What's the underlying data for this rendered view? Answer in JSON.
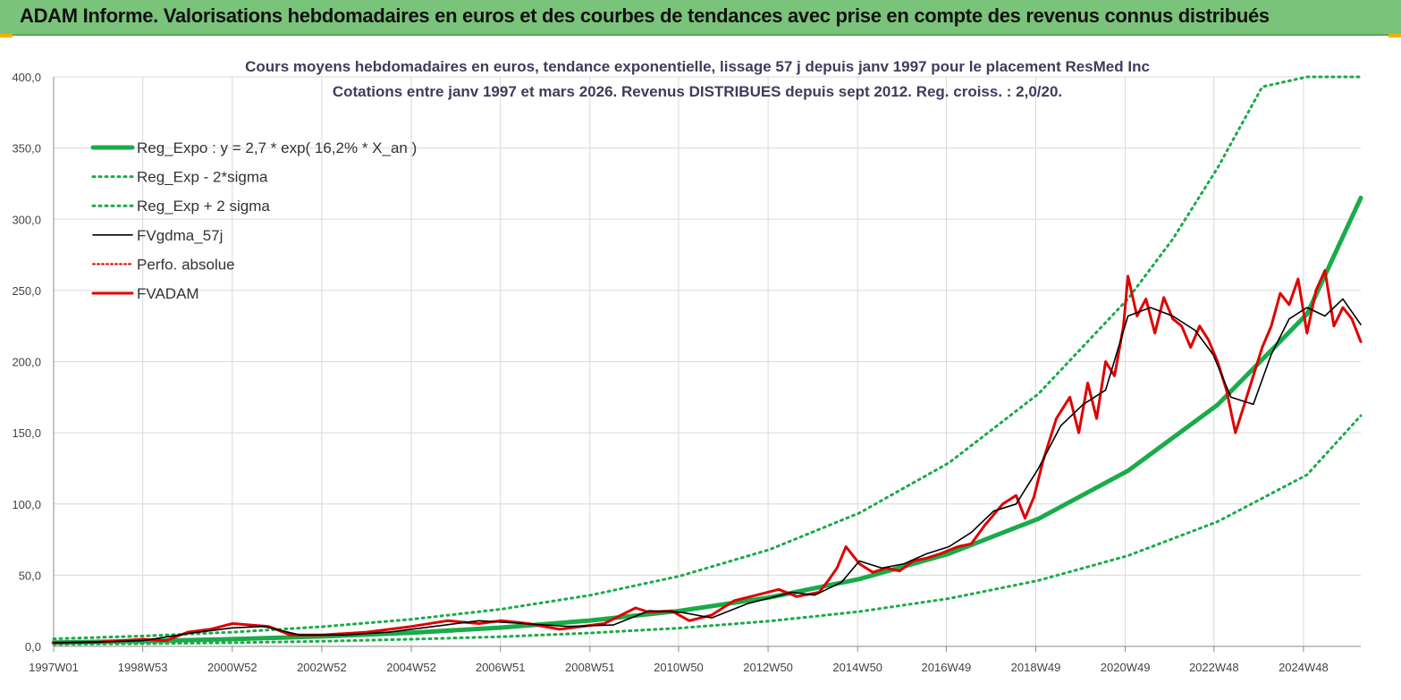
{
  "header": {
    "title": "ADAM Informe. Valorisations hebdomadaires en euros et des courbes de tendances avec prise en compte des revenus connus distribués"
  },
  "colors": {
    "header_bg": "#7ac37a",
    "trend_green": "#1aab4a",
    "fv_black": "#000000",
    "perf_red": "#e00000",
    "grid": "#d9d9d9"
  },
  "chart_data": {
    "type": "line",
    "title": "Cours moyens hebdomadaires en euros, tendance exponentielle, lissage 57 j depuis janv 1997 pour le placement ResMed Inc",
    "subtitle": "Cotations entre janv 1997 et mars 2026. Revenus DISTRIBUES depuis sept 2012. Reg. croiss. : 2,0/20.",
    "xlabel": "",
    "ylabel": "",
    "ylim": [
      0,
      400
    ],
    "x_range_years": [
      1997.0,
      2026.2
    ],
    "yticks": [
      "0,0",
      "50,0",
      "100,0",
      "150,0",
      "200,0",
      "250,0",
      "300,0",
      "350,0",
      "400,0"
    ],
    "ytick_values": [
      0,
      50,
      100,
      150,
      200,
      250,
      300,
      350,
      400
    ],
    "xticks": [
      {
        "label": "1997W01",
        "year": 1997.0
      },
      {
        "label": "1998W53",
        "year": 1998.99
      },
      {
        "label": "2000W52",
        "year": 2000.99
      },
      {
        "label": "2002W52",
        "year": 2002.99
      },
      {
        "label": "2004W52",
        "year": 2004.99
      },
      {
        "label": "2006W51",
        "year": 2006.98
      },
      {
        "label": "2008W51",
        "year": 2008.98
      },
      {
        "label": "2010W50",
        "year": 2010.96
      },
      {
        "label": "2012W50",
        "year": 2012.96
      },
      {
        "label": "2014W50",
        "year": 2014.96
      },
      {
        "label": "2016W49",
        "year": 2016.94
      },
      {
        "label": "2018W49",
        "year": 2018.94
      },
      {
        "label": "2020W49",
        "year": 2020.94
      },
      {
        "label": "2022W48",
        "year": 2022.92
      },
      {
        "label": "2024W48",
        "year": 2024.92
      }
    ],
    "grid": true,
    "legend_position": "top-left",
    "series": [
      {
        "name": "Reg_Expo : y = 2,7 * exp( 16,2% *  X_an )",
        "style": "solid-thick",
        "color": "#1aab4a",
        "x": [
          1997,
          1999,
          2001,
          2003,
          2005,
          2007,
          2009,
          2011,
          2013,
          2015,
          2017,
          2019,
          2021,
          2023,
          2025,
          2026.2
        ],
        "values": [
          2.7,
          3.7,
          5.1,
          7.0,
          9.6,
          13.2,
          18.2,
          25.0,
          34.4,
          47.3,
          65.1,
          89.6,
          123.3,
          169.6,
          233.4,
          315.0
        ]
      },
      {
        "name": "Reg_Exp - 2*sigma",
        "style": "dotted",
        "color": "#1aab4a",
        "x": [
          1997,
          1999,
          2001,
          2003,
          2005,
          2007,
          2009,
          2011,
          2013,
          2015,
          2017,
          2019,
          2021,
          2023,
          2025,
          2026.2
        ],
        "values": [
          1.4,
          1.9,
          2.6,
          3.6,
          5.0,
          6.8,
          9.4,
          12.9,
          17.8,
          24.4,
          33.6,
          46.3,
          63.7,
          87.6,
          120.5,
          162.0
        ]
      },
      {
        "name": "Reg_Exp + 2 sigma",
        "style": "dotted",
        "color": "#1aab4a",
        "x": [
          1997,
          1999,
          2001,
          2003,
          2005,
          2007,
          2009,
          2011,
          2013,
          2015,
          2017,
          2019,
          2021,
          2022,
          2023,
          2024,
          2025,
          2026.2
        ],
        "values": [
          5.3,
          7.3,
          10.0,
          13.8,
          19.0,
          26.1,
          36.0,
          49.5,
          68.1,
          93.7,
          128.9,
          177.4,
          244.1,
          286.0,
          336.0,
          393.0,
          400.0,
          400.0
        ]
      },
      {
        "name": "FVgdma_57j",
        "style": "solid-thin",
        "color": "#000000",
        "x": [
          1997,
          1998,
          1999,
          2000,
          2001,
          2001.7,
          2002.5,
          2003.5,
          2004.5,
          2005.5,
          2006.5,
          2007.5,
          2008.5,
          2009.5,
          2010.3,
          2011.0,
          2011.7,
          2012.5,
          2013.5,
          2014.0,
          2014.6,
          2015.0,
          2015.5,
          2016.0,
          2016.5,
          2017.0,
          2017.5,
          2018.0,
          2018.5,
          2019.0,
          2019.5,
          2020.0,
          2020.5,
          2021.0,
          2021.5,
          2022.0,
          2022.5,
          2022.9,
          2023.3,
          2023.8,
          2024.2,
          2024.6,
          2025.0,
          2025.4,
          2025.8,
          2026.2
        ],
        "values": [
          2.5,
          3.0,
          4.0,
          9.0,
          13.0,
          14.0,
          8.0,
          8.0,
          10.0,
          14.0,
          18.0,
          16.0,
          14.0,
          15.0,
          25.0,
          24.0,
          20.0,
          30.0,
          38.0,
          36.0,
          45.0,
          60.0,
          55.0,
          58.0,
          65.0,
          70.0,
          80.0,
          95.0,
          100.0,
          125.0,
          155.0,
          170.0,
          180.0,
          232.0,
          238.0,
          232.0,
          222.0,
          205.0,
          175.0,
          170.0,
          205.0,
          230.0,
          238.0,
          232.0,
          244.0,
          226.0
        ]
      },
      {
        "name": "Perfo. absolue",
        "style": "dotted-thin",
        "color": "#e00000",
        "x": [],
        "values": []
      },
      {
        "name": "FVADAM",
        "style": "solid-thick",
        "color": "#e00000",
        "x": [
          1997,
          1998,
          1999,
          1999.5,
          2000,
          2000.5,
          2001,
          2001.4,
          2001.8,
          2002.3,
          2003,
          2004,
          2005,
          2005.8,
          2006.5,
          2007,
          2007.6,
          2008.3,
          2008.8,
          2009.3,
          2010.0,
          2010.3,
          2010.8,
          2011.2,
          2011.7,
          2012.2,
          2012.7,
          2013.2,
          2013.6,
          2014.1,
          2014.3,
          2014.5,
          2014.7,
          2015.0,
          2015.3,
          2015.6,
          2015.9,
          2016.2,
          2016.5,
          2016.8,
          2017.2,
          2017.5,
          2017.8,
          2018.2,
          2018.5,
          2018.7,
          2018.9,
          2019.1,
          2019.4,
          2019.7,
          2019.9,
          2020.1,
          2020.3,
          2020.5,
          2020.7,
          2020.9,
          2021.0,
          2021.2,
          2021.4,
          2021.6,
          2021.8,
          2022.0,
          2022.2,
          2022.4,
          2022.6,
          2022.8,
          2023.0,
          2023.2,
          2023.4,
          2023.6,
          2023.8,
          2024.0,
          2024.2,
          2024.4,
          2024.6,
          2024.8,
          2025.0,
          2025.2,
          2025.4,
          2025.6,
          2025.8,
          2026.0,
          2026.2
        ],
        "values": [
          2.5,
          3.0,
          5.0,
          4.0,
          10.0,
          12.0,
          16.0,
          15.0,
          14.0,
          8.0,
          8.0,
          10.0,
          14.0,
          18.0,
          16.0,
          18.0,
          16.0,
          12.0,
          14.0,
          16.0,
          27.0,
          24.0,
          25.0,
          18.0,
          22.0,
          32.0,
          36.0,
          40.0,
          35.0,
          38.0,
          46.0,
          55.0,
          70.0,
          58.0,
          52.0,
          55.0,
          53.0,
          60.0,
          62.0,
          65.0,
          70.0,
          72.0,
          85.0,
          100.0,
          106.0,
          90.0,
          105.0,
          130.0,
          160.0,
          175.0,
          150.0,
          185.0,
          160.0,
          200.0,
          190.0,
          225.0,
          260.0,
          232.0,
          244.0,
          220.0,
          245.0,
          230.0,
          225.0,
          210.0,
          225.0,
          215.0,
          200.0,
          180.0,
          150.0,
          170.0,
          190.0,
          210.0,
          225.0,
          248.0,
          240.0,
          258.0,
          220.0,
          250.0,
          264.0,
          225.0,
          238.0,
          230.0,
          214.0
        ]
      }
    ]
  }
}
